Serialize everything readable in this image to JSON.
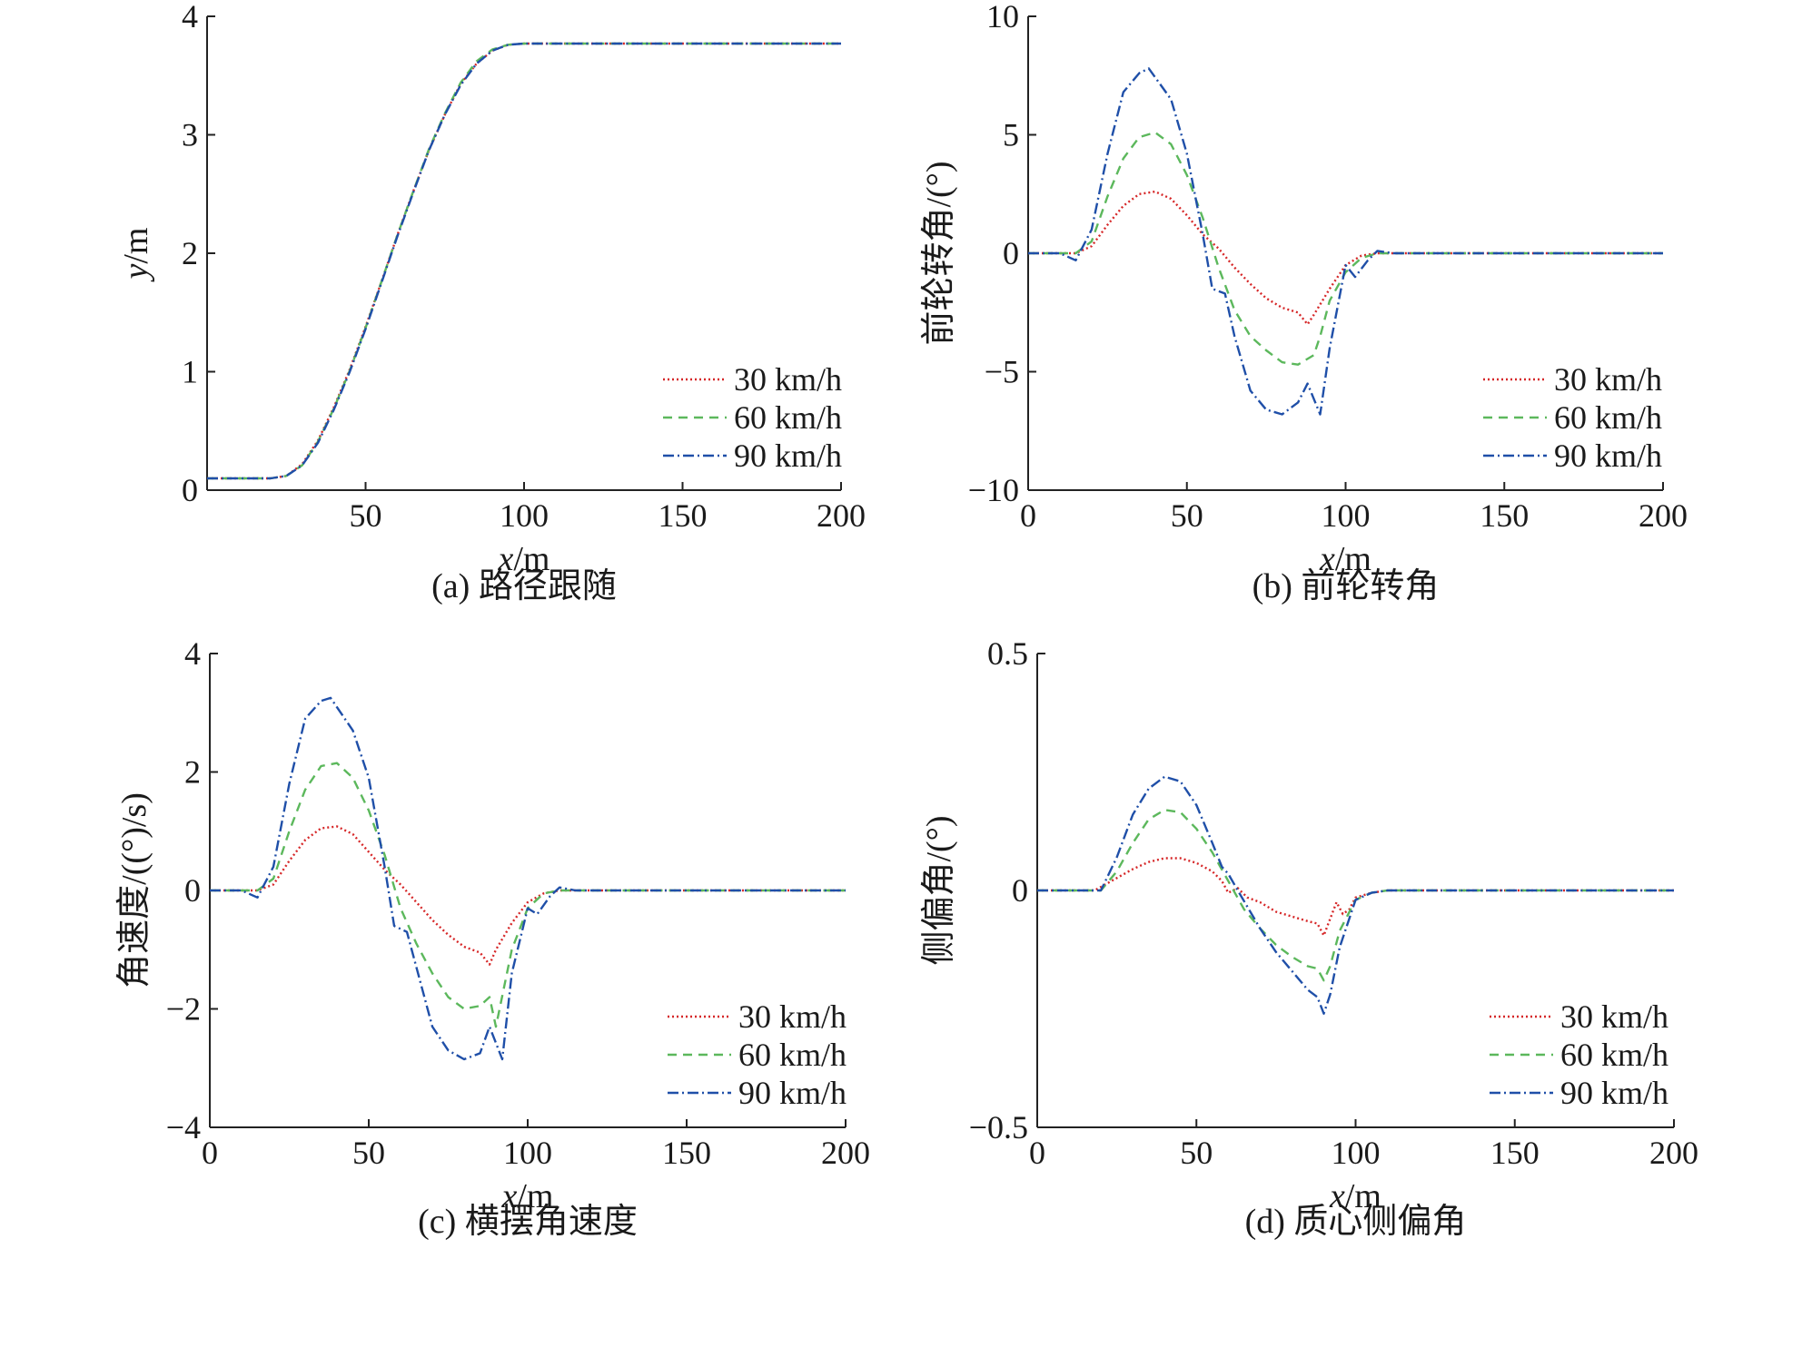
{
  "series_styles": [
    {
      "color": "#d62728",
      "dash": "2 3"
    },
    {
      "color": "#5cb85c",
      "dash": "10 7"
    },
    {
      "color": "#1f4fa8",
      "dash": "12 4 2 4"
    }
  ],
  "chart_data": [
    {
      "type": "line",
      "caption": "(a) 路径跟随",
      "xlabel_var": "x",
      "xlabel_unit": "/m",
      "ylabel_var": "y",
      "ylabel_unit": "/m",
      "xlim": [
        0,
        200
      ],
      "ylim": [
        0,
        4
      ],
      "xticks": [
        "50",
        "100",
        "150",
        "200"
      ],
      "xtick_values": [
        50,
        100,
        150,
        200
      ],
      "yticks": [
        "0",
        "1",
        "2",
        "3",
        "4"
      ],
      "ytick_values": [
        0,
        1,
        2,
        3,
        4
      ],
      "legend_position": "lower-right",
      "series": [
        {
          "name": "30 km/h",
          "x": [
            0,
            20,
            25,
            30,
            35,
            40,
            45,
            50,
            55,
            60,
            65,
            70,
            75,
            80,
            85,
            90,
            95,
            100,
            110,
            200
          ],
          "y": [
            0.1,
            0.1,
            0.12,
            0.22,
            0.42,
            0.7,
            1.02,
            1.38,
            1.76,
            2.15,
            2.52,
            2.87,
            3.17,
            3.43,
            3.6,
            3.71,
            3.76,
            3.77,
            3.77,
            3.77
          ]
        },
        {
          "name": "60 km/h",
          "x": [
            0,
            20,
            25,
            30,
            35,
            40,
            45,
            50,
            55,
            60,
            65,
            70,
            75,
            80,
            85,
            90,
            95,
            100,
            110,
            200
          ],
          "y": [
            0.1,
            0.1,
            0.12,
            0.21,
            0.41,
            0.69,
            1.01,
            1.37,
            1.76,
            2.15,
            2.52,
            2.88,
            3.18,
            3.44,
            3.62,
            3.72,
            3.76,
            3.77,
            3.77,
            3.77
          ]
        },
        {
          "name": "90 km/h",
          "x": [
            0,
            20,
            25,
            30,
            35,
            40,
            45,
            50,
            55,
            60,
            65,
            70,
            75,
            80,
            85,
            90,
            95,
            100,
            110,
            200
          ],
          "y": [
            0.1,
            0.1,
            0.12,
            0.21,
            0.4,
            0.68,
            1.0,
            1.36,
            1.75,
            2.14,
            2.51,
            2.87,
            3.17,
            3.42,
            3.6,
            3.71,
            3.76,
            3.77,
            3.77,
            3.77
          ]
        }
      ]
    },
    {
      "type": "line",
      "caption": "(b) 前轮转角",
      "xlabel_var": "x",
      "xlabel_unit": "/m",
      "ylabel_var": "",
      "ylabel_unit": "前轮转角/(°)",
      "xlim": [
        0,
        200
      ],
      "ylim": [
        -10,
        10
      ],
      "xticks": [
        "0",
        "50",
        "100",
        "150",
        "200"
      ],
      "xtick_values": [
        0,
        50,
        100,
        150,
        200
      ],
      "yticks": [
        "−10",
        "−5",
        "0",
        "5",
        "10"
      ],
      "ytick_values": [
        -10,
        -5,
        0,
        5,
        10
      ],
      "legend_position": "lower-right",
      "series": [
        {
          "name": "30 km/h",
          "x": [
            0,
            15,
            20,
            25,
            30,
            35,
            40,
            45,
            50,
            55,
            60,
            65,
            70,
            75,
            80,
            85,
            88,
            90,
            95,
            100,
            105,
            110,
            120,
            130,
            200
          ],
          "y": [
            0,
            0,
            0.3,
            1.2,
            2.0,
            2.5,
            2.6,
            2.3,
            1.6,
            0.8,
            0.2,
            -0.6,
            -1.3,
            -1.9,
            -2.3,
            -2.5,
            -3.0,
            -2.6,
            -1.5,
            -0.5,
            -0.1,
            0,
            0,
            0,
            0
          ]
        },
        {
          "name": "60 km/h",
          "x": [
            0,
            15,
            20,
            25,
            30,
            35,
            40,
            45,
            50,
            55,
            60,
            65,
            70,
            75,
            80,
            85,
            90,
            92,
            95,
            100,
            105,
            110,
            120,
            130,
            200
          ],
          "y": [
            0,
            0,
            0.5,
            2.4,
            4.0,
            4.9,
            5.1,
            4.6,
            3.3,
            1.5,
            -0.6,
            -2.4,
            -3.5,
            -4.1,
            -4.6,
            -4.7,
            -4.3,
            -3.5,
            -2.0,
            -0.8,
            -0.2,
            0,
            0,
            0,
            0
          ]
        },
        {
          "name": "90 km/h",
          "x": [
            0,
            10,
            15,
            20,
            25,
            30,
            35,
            38,
            45,
            50,
            55,
            58,
            62,
            65,
            70,
            75,
            80,
            85,
            88,
            92,
            95,
            100,
            103,
            107,
            110,
            115,
            120,
            130,
            200
          ],
          "y": [
            0,
            0,
            -0.3,
            1.0,
            4.2,
            6.8,
            7.6,
            7.8,
            6.5,
            4.2,
            0.8,
            -1.5,
            -1.7,
            -3.5,
            -5.8,
            -6.6,
            -6.8,
            -6.3,
            -5.5,
            -6.8,
            -4.0,
            -0.5,
            -1.0,
            -0.3,
            0.1,
            0,
            0,
            0,
            0
          ]
        }
      ]
    },
    {
      "type": "line",
      "caption": "(c) 横摆角速度",
      "xlabel_var": "x",
      "xlabel_unit": "/m",
      "ylabel_var": "",
      "ylabel_unit": "角速度/((°)/s)",
      "xlim": [
        0,
        200
      ],
      "ylim": [
        -4,
        4
      ],
      "xticks": [
        "0",
        "50",
        "100",
        "150",
        "200"
      ],
      "xtick_values": [
        0,
        50,
        100,
        150,
        200
      ],
      "yticks": [
        "−4",
        "−2",
        "0",
        "2",
        "4"
      ],
      "ytick_values": [
        -4,
        -2,
        0,
        2,
        4
      ],
      "legend_position": "lower-right",
      "series": [
        {
          "name": "30 km/h",
          "x": [
            0,
            15,
            20,
            25,
            30,
            35,
            40,
            45,
            50,
            55,
            60,
            65,
            70,
            75,
            80,
            85,
            88,
            90,
            95,
            100,
            105,
            110,
            120,
            200
          ],
          "y": [
            0,
            0,
            0.1,
            0.5,
            0.85,
            1.05,
            1.08,
            0.95,
            0.65,
            0.35,
            0.1,
            -0.2,
            -0.5,
            -0.75,
            -0.95,
            -1.05,
            -1.25,
            -1.0,
            -0.55,
            -0.2,
            -0.05,
            0,
            0,
            0
          ]
        },
        {
          "name": "60 km/h",
          "x": [
            0,
            15,
            20,
            25,
            30,
            35,
            40,
            45,
            50,
            55,
            60,
            65,
            70,
            75,
            80,
            85,
            88,
            90,
            95,
            100,
            105,
            110,
            120,
            200
          ],
          "y": [
            0,
            0,
            0.2,
            1.0,
            1.7,
            2.1,
            2.15,
            1.9,
            1.35,
            0.6,
            -0.3,
            -0.9,
            -1.4,
            -1.8,
            -2.0,
            -1.95,
            -1.8,
            -2.3,
            -1.0,
            -0.3,
            -0.05,
            0,
            0,
            0
          ]
        },
        {
          "name": "90 km/h",
          "x": [
            0,
            10,
            15,
            20,
            25,
            30,
            35,
            38,
            45,
            50,
            55,
            58,
            62,
            65,
            70,
            75,
            80,
            85,
            88,
            92,
            95,
            100,
            103,
            107,
            110,
            115,
            120,
            200
          ],
          "y": [
            0,
            0,
            -0.12,
            0.4,
            1.8,
            2.9,
            3.2,
            3.25,
            2.7,
            1.9,
            0.4,
            -0.6,
            -0.7,
            -1.3,
            -2.3,
            -2.7,
            -2.85,
            -2.75,
            -2.3,
            -2.85,
            -1.4,
            -0.3,
            -0.4,
            -0.1,
            0.05,
            0,
            0,
            0
          ]
        }
      ]
    },
    {
      "type": "line",
      "caption": "(d) 质心侧偏角",
      "xlabel_var": "x",
      "xlabel_unit": "/m",
      "ylabel_var": "",
      "ylabel_unit": "侧偏角/(°)",
      "xlim": [
        0,
        200
      ],
      "ylim": [
        -0.5,
        0.5
      ],
      "xticks": [
        "0",
        "50",
        "100",
        "150",
        "200"
      ],
      "xtick_values": [
        0,
        50,
        100,
        150,
        200
      ],
      "yticks": [
        "−0.5",
        "0",
        "0.5"
      ],
      "ytick_values": [
        -0.5,
        0,
        0.5
      ],
      "legend_position": "lower-right",
      "series": [
        {
          "name": "30 km/h",
          "x": [
            0,
            18,
            22,
            30,
            35,
            40,
            45,
            50,
            55,
            58,
            60,
            63,
            66,
            70,
            75,
            80,
            85,
            88,
            90,
            92,
            94,
            96,
            98,
            100,
            105,
            110,
            200
          ],
          "y": [
            0,
            0,
            0.015,
            0.045,
            0.06,
            0.068,
            0.068,
            0.058,
            0.04,
            0.02,
            -0.005,
            0.005,
            -0.015,
            -0.025,
            -0.045,
            -0.055,
            -0.065,
            -0.07,
            -0.095,
            -0.06,
            -0.025,
            -0.05,
            -0.04,
            -0.015,
            -0.005,
            0,
            0
          ]
        },
        {
          "name": "60 km/h",
          "x": [
            0,
            20,
            25,
            30,
            35,
            40,
            45,
            50,
            55,
            60,
            65,
            70,
            75,
            80,
            85,
            88,
            90,
            92,
            95,
            100,
            105,
            110,
            200
          ],
          "y": [
            0,
            0,
            0.04,
            0.1,
            0.15,
            0.17,
            0.165,
            0.13,
            0.08,
            0.02,
            -0.04,
            -0.08,
            -0.115,
            -0.14,
            -0.16,
            -0.165,
            -0.19,
            -0.16,
            -0.085,
            -0.02,
            -0.005,
            0,
            0
          ]
        },
        {
          "name": "90 km/h",
          "x": [
            0,
            20,
            25,
            30,
            35,
            40,
            45,
            50,
            55,
            58,
            60,
            63,
            70,
            75,
            80,
            85,
            88,
            90,
            92,
            95,
            100,
            105,
            110,
            200
          ],
          "y": [
            0,
            0,
            0.07,
            0.16,
            0.215,
            0.24,
            0.23,
            0.18,
            0.1,
            0.05,
            0.035,
            0.0,
            -0.08,
            -0.13,
            -0.17,
            -0.21,
            -0.225,
            -0.26,
            -0.22,
            -0.12,
            -0.02,
            -0.005,
            0,
            0
          ]
        }
      ]
    }
  ]
}
